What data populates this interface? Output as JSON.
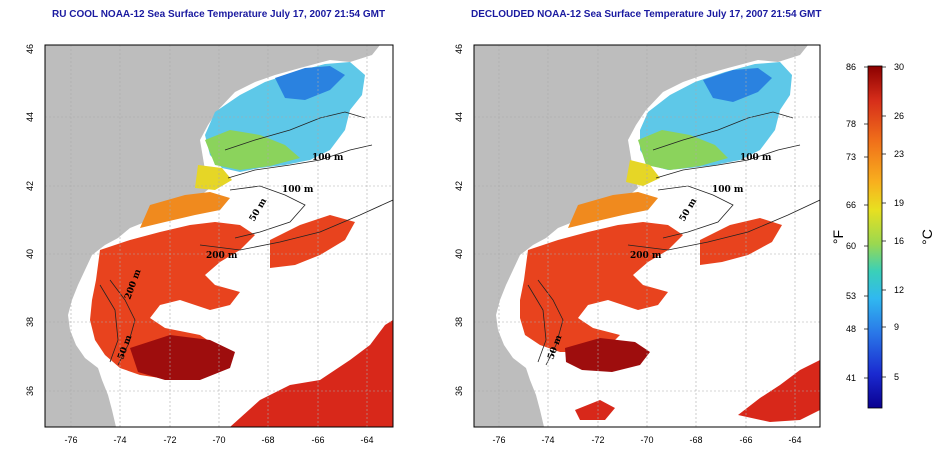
{
  "panels": [
    {
      "title": "RU COOL NOAA-12 Sea Surface Temperature July 17, 2007 21:54 GMT",
      "contour_labels": [
        "100 m",
        "100 m",
        "50 m",
        "200 m",
        "50 m",
        "200 m"
      ]
    },
    {
      "title": "DECLOUDED NOAA-12 Sea Surface Temperature July 17, 2007 21:54 GMT",
      "contour_labels": [
        "100 m",
        "100 m",
        "50 m",
        "200 m",
        "50 m"
      ]
    }
  ],
  "axes": {
    "x_ticks": [
      "-76",
      "-74",
      "-72",
      "-70",
      "-68",
      "-66",
      "-64"
    ],
    "y_ticks": [
      "46",
      "44",
      "42",
      "40",
      "38",
      "36"
    ]
  },
  "colorbar": {
    "fahrenheit_ticks": [
      "86",
      "78",
      "73",
      "66",
      "60",
      "53",
      "48",
      "41"
    ],
    "celsius_ticks": [
      "30",
      "26",
      "23",
      "19",
      "16",
      "12",
      "9",
      "5"
    ],
    "fahrenheit_unit": "°F",
    "celsius_unit": "°C",
    "gradient_colors": [
      "#8b0000",
      "#d62d1a",
      "#f0701a",
      "#f8b01e",
      "#e8e020",
      "#9ad850",
      "#3ad0b8",
      "#30b8f0",
      "#2a78e8",
      "#1a2ad0",
      "#0a0090"
    ]
  },
  "colors": {
    "land": "#bdbdbd",
    "cloud": "#ffffff",
    "title": "#1a1aa0"
  }
}
